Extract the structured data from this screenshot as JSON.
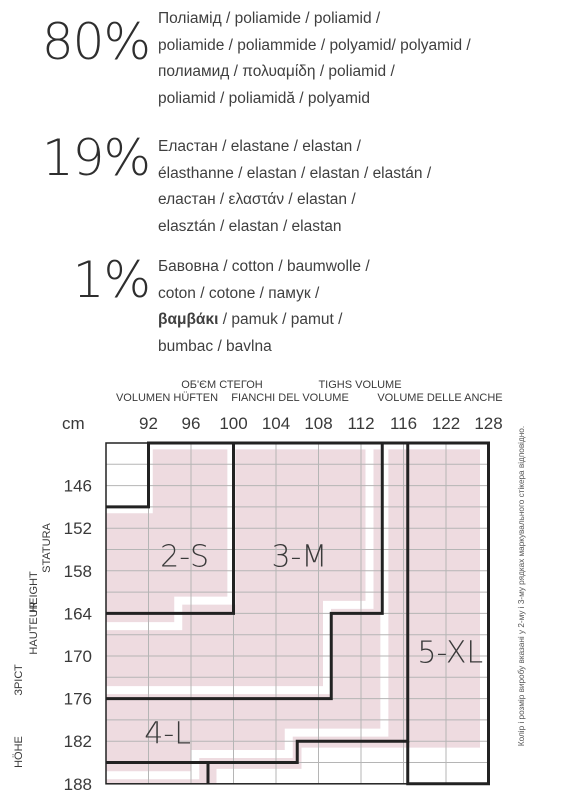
{
  "composition": [
    {
      "percent": "80%",
      "lines": [
        "Поліамід / poliamide / poliamid /",
        "poliamide / poliammide / polyamid/ polyamid /",
        "полиамид / πολυαμίδη / poliamid /",
        "poliamid / poliamidă / polyamid"
      ]
    },
    {
      "percent": "19%",
      "lines": [
        "Еластан / elastane / elastan /",
        "élasthanne / elastan / elastan / elastán /",
        "еластан / ελαστάν / elastan /",
        "elasztán / elastan / elastan"
      ]
    },
    {
      "percent": "1%",
      "lines": [
        "Бавовна / cotton / baumwolle /",
        "coton / cotone / памук /",
        "βαμβάκι / pamuk / pamut /",
        "bumbac / bavlna"
      ],
      "bold_word": "βαμβάκι"
    }
  ],
  "size_chart": {
    "header_labels": [
      "ОБ'ЄМ СТЕГОН",
      "TIGHS VOLUME",
      "VOLUMEN HÜFTEN",
      "FIANCHI DEL VOLUME",
      "VOLUME DELLE ANCHE"
    ],
    "unit": "cm",
    "hip_values": [
      "92",
      "96",
      "100",
      "104",
      "108",
      "112",
      "116",
      "122",
      "128"
    ],
    "height_values": [
      "146",
      "152",
      "158",
      "164",
      "170",
      "176",
      "182",
      "188"
    ],
    "height_axis_labels": {
      "col1": [
        "ЗРІСТ",
        "HÖHE"
      ],
      "col2": [
        "HEIGHT",
        "HAUTEUR"
      ],
      "col3": [
        "STATURA"
      ]
    },
    "sizes": [
      "2-S",
      "3-M",
      "4-L",
      "5-XL"
    ],
    "fill_color": "#eedbe0",
    "grid_color": "#b5b5b5",
    "border_color": "#222222"
  },
  "side_note": "Колір і розмір виробу вказані у 2-му і 3-му рядках маркувального стікера відповідно."
}
